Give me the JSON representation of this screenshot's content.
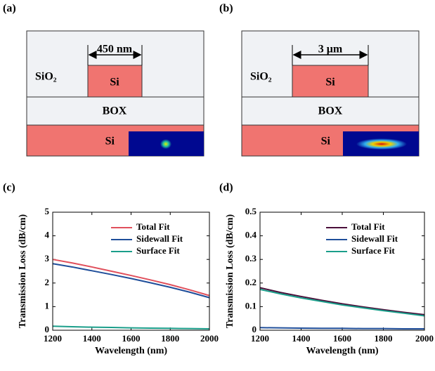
{
  "panels": {
    "a": "(a)",
    "b": "(b)",
    "c": "(c)",
    "d": "(d)"
  },
  "diagrams": {
    "a": {
      "width_label": "450 nm",
      "cladding": "SiO₂",
      "core": "Si",
      "box": "BOX",
      "substrate": "Si"
    },
    "b": {
      "width_label": "3 μm",
      "cladding": "SiO₂",
      "core": "Si",
      "box": "BOX",
      "substrate": "Si"
    }
  },
  "chart_data": [
    {
      "type": "line",
      "xlabel": "Wavelength (nm)",
      "ylabel": "Transmission Loss (dB/cm)",
      "x": [
        1200,
        1300,
        1400,
        1500,
        1600,
        1700,
        1800,
        1900,
        2000
      ],
      "xlim": [
        1200,
        2000
      ],
      "xticks": [
        1200,
        1400,
        1600,
        1800,
        2000
      ],
      "ylim": [
        0,
        5
      ],
      "yticks": [
        0,
        1,
        2,
        3,
        4,
        5
      ],
      "legend": "upper right",
      "series": [
        {
          "name": "Total Fit",
          "color": "#e0505c",
          "values": [
            3.0,
            2.85,
            2.68,
            2.5,
            2.32,
            2.13,
            1.93,
            1.71,
            1.47
          ]
        },
        {
          "name": "Sidewall Fit",
          "color": "#1f4e9a",
          "values": [
            2.82,
            2.68,
            2.52,
            2.36,
            2.19,
            2.01,
            1.82,
            1.61,
            1.38
          ]
        },
        {
          "name": "Surface Fit",
          "color": "#1a9e8a",
          "values": [
            0.17,
            0.15,
            0.13,
            0.12,
            0.1,
            0.09,
            0.08,
            0.07,
            0.06
          ]
        }
      ]
    },
    {
      "type": "line",
      "xlabel": "Wavelength (nm)",
      "ylabel": "Transmission Loss (dB/cm)",
      "x": [
        1200,
        1300,
        1400,
        1500,
        1600,
        1700,
        1800,
        1900,
        2000
      ],
      "xlim": [
        1200,
        2000
      ],
      "xticks": [
        1200,
        1400,
        1600,
        1800,
        2000
      ],
      "ylim": [
        0,
        0.5
      ],
      "yticks": [
        0,
        0.1,
        0.2,
        0.3,
        0.4,
        0.5
      ],
      "legend": "upper right",
      "series": [
        {
          "name": "Total Fit",
          "color": "#4a0f3a",
          "values": [
            0.18,
            0.16,
            0.143,
            0.127,
            0.112,
            0.099,
            0.087,
            0.076,
            0.066
          ]
        },
        {
          "name": "Sidewall Fit",
          "color": "#1f4e9a",
          "values": [
            0.011,
            0.01,
            0.009,
            0.008,
            0.008,
            0.007,
            0.007,
            0.006,
            0.006
          ]
        },
        {
          "name": "Surface Fit",
          "color": "#1a9e8a",
          "values": [
            0.173,
            0.154,
            0.137,
            0.122,
            0.107,
            0.095,
            0.083,
            0.072,
            0.061
          ]
        }
      ]
    }
  ]
}
